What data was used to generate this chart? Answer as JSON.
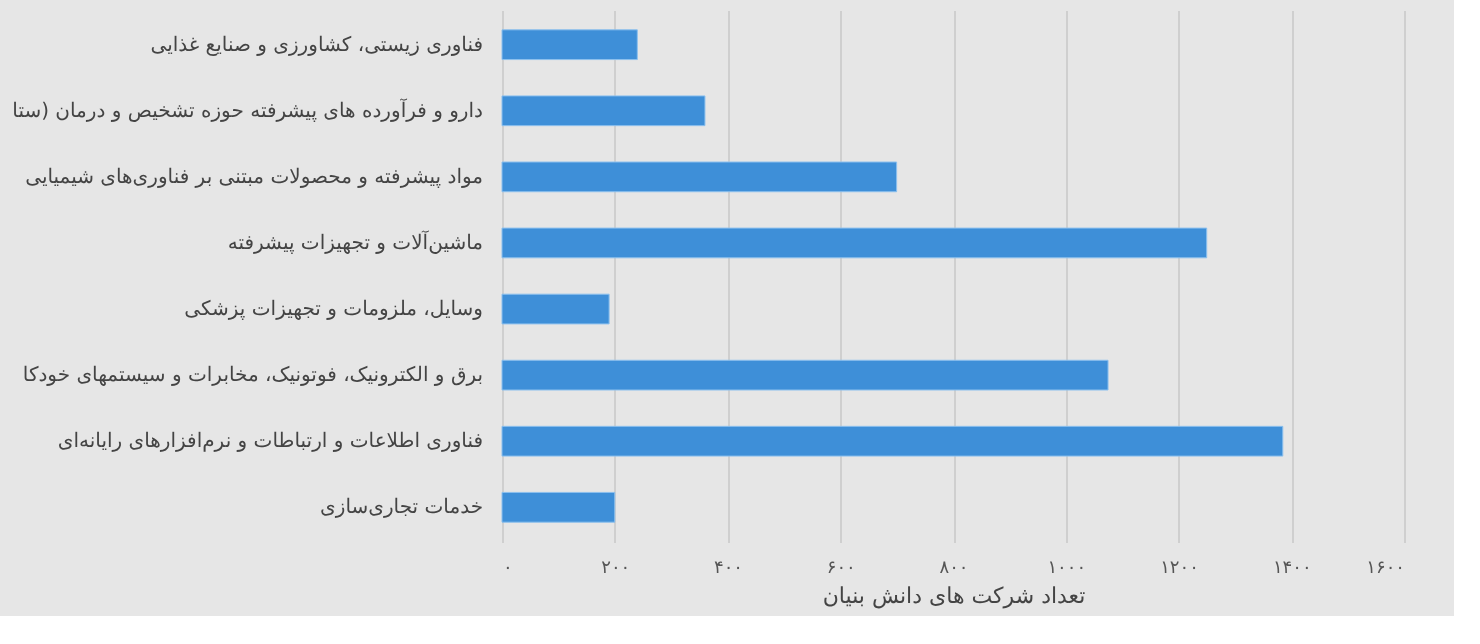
{
  "chart_data": {
    "type": "bar",
    "orientation": "horizontal",
    "xlabel": "تعداد شرکت های دانش بنیان",
    "categories": [
      "فناوری زیستی، کشاورزی و صنایع غذایی",
      "دارو و فرآورده های پیشرفته حوزه تشخیص و درمان (ستا",
      "مواد پیشرفته و محصولات مبتنی بر فناوری‌های شیمیایی",
      "ماشین‌آلات و تجهیزات پیشرفته",
      "وسایل، ملزومات و تجهیزات پزشکی",
      "برق و الکترونیک، فوتونیک، مخابرات و سیستمهای خودکا",
      "فناوری اطلاعات و ارتباطات و نرم‌افزارهای رایانه‌ای",
      "خدمات تجاری‌سازی"
    ],
    "values": [
      240,
      360,
      700,
      1250,
      190,
      1075,
      1385,
      200
    ],
    "color": "#3e8fd8",
    "xlim": [
      0,
      1600
    ],
    "xticks": [
      {
        "value": 0,
        "label": "۰"
      },
      {
        "value": 200,
        "label": "۲۰۰"
      },
      {
        "value": 400,
        "label": "۴۰۰"
      },
      {
        "value": 600,
        "label": "۶۰۰"
      },
      {
        "value": 800,
        "label": "۸۰۰"
      },
      {
        "value": 1000,
        "label": "۱۰۰۰"
      },
      {
        "value": 1200,
        "label": "۱۲۰۰"
      },
      {
        "value": 1400,
        "label": "۱۴۰۰"
      },
      {
        "value": 1600,
        "label": "۱۶۰۰"
      }
    ],
    "grid": "x"
  }
}
